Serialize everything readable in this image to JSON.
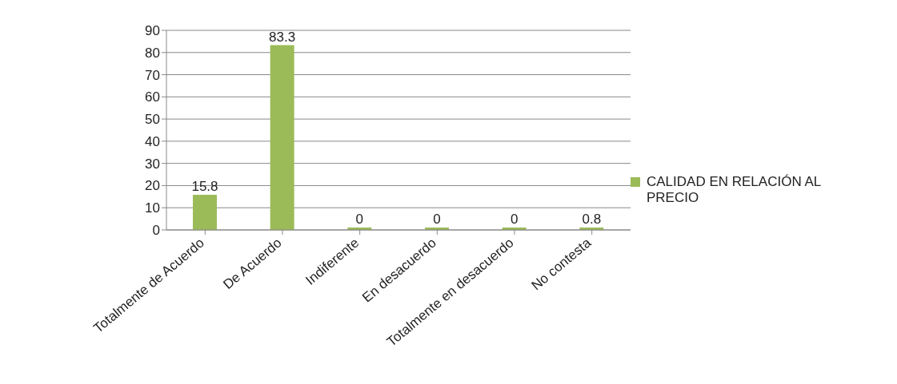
{
  "chart_data": {
    "type": "bar",
    "categories": [
      "Totalmente de Acuerdo",
      "De Acuerdo",
      "Indiferente",
      "En desacuerdo",
      "Totalmente en desacuerdo",
      "No contesta"
    ],
    "series": [
      {
        "name": "CALIDAD EN RELACIÓN AL PRECIO",
        "color": "#9bbb59",
        "values": [
          15.8,
          83.3,
          0,
          0,
          0,
          0.8
        ]
      }
    ],
    "ylim": [
      0,
      90
    ],
    "yticks": [
      0,
      10,
      20,
      30,
      40,
      50,
      60,
      70,
      80,
      90
    ],
    "grid": "y",
    "legend": "right",
    "data_labels": true
  }
}
